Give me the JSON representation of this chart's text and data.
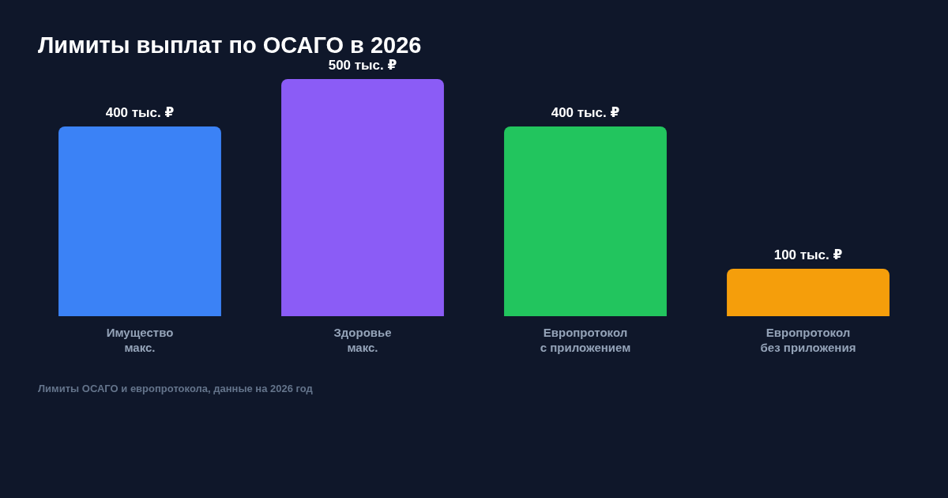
{
  "chart_data": {
    "type": "bar",
    "title": "Лимиты выплат по ОСАГО в 2026",
    "categories": [
      "Имущество\nмакс.",
      "Здоровье\nмакс.",
      "Европротокол\nс приложением",
      "Европротокол\nбез приложения"
    ],
    "values": [
      400,
      500,
      400,
      100
    ],
    "value_labels": [
      "400 тыс. ₽",
      "500 тыс. ₽",
      "400 тыс. ₽",
      "100 тыс. ₽"
    ],
    "colors": [
      "#3b82f6",
      "#8b5cf6",
      "#22c55e",
      "#f59e0b"
    ],
    "tick_labels": "x",
    "annotations": [
      "Лимиты ОСАГО и европротокола, данные на 2026 год"
    ]
  }
}
